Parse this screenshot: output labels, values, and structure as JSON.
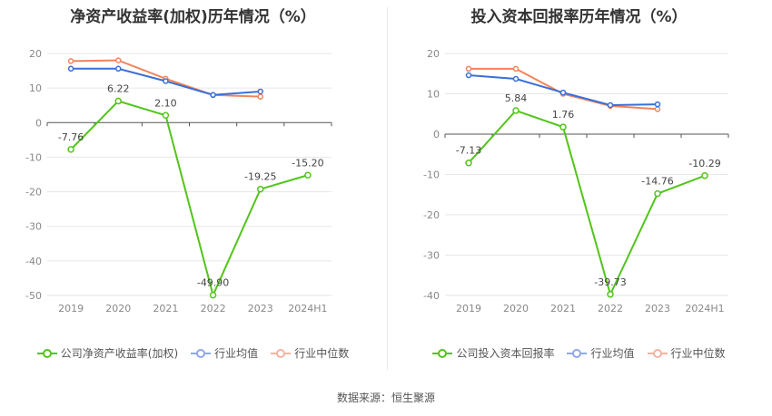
{
  "source_label": "数据来源：恒生聚源",
  "colors": {
    "company": "#52c41a",
    "avg": "#3a6fd8",
    "median": "#f0845a"
  },
  "chart_data": [
    {
      "type": "line",
      "title": "净资产收益率(加权)历年情况（%）",
      "categories": [
        "2019",
        "2020",
        "2021",
        "2022",
        "2023",
        "2024H1"
      ],
      "ylim": [
        -50,
        20
      ],
      "yticks": [
        20,
        10,
        0,
        -10,
        -20,
        -30,
        -40,
        -50
      ],
      "series": [
        {
          "name": "公司净资产收益率(加权)",
          "key": "company",
          "values": [
            -7.76,
            6.22,
            2.1,
            -49.9,
            -19.25,
            -15.2
          ],
          "labels": [
            "-7.76",
            "6.22",
            "2.10",
            "-49.90",
            "-19.25",
            "-15.20"
          ]
        },
        {
          "name": "行业均值",
          "key": "avg",
          "values": [
            15.6,
            15.6,
            12.0,
            8.0,
            9.0,
            null
          ]
        },
        {
          "name": "行业中位数",
          "key": "median",
          "values": [
            17.8,
            18.0,
            12.7,
            8.0,
            7.5,
            null
          ]
        }
      ]
    },
    {
      "type": "line",
      "title": "投入资本回报率历年情况（%）",
      "categories": [
        "2019",
        "2020",
        "2021",
        "2022",
        "2023",
        "2024H1"
      ],
      "ylim": [
        -40,
        20
      ],
      "yticks": [
        20,
        10,
        0,
        -10,
        -20,
        -30,
        -40
      ],
      "series": [
        {
          "name": "公司投入资本回报率",
          "key": "company",
          "values": [
            -7.13,
            5.84,
            1.76,
            -39.73,
            -14.76,
            -10.29
          ],
          "labels": [
            "-7.13",
            "5.84",
            "1.76",
            "-39.73",
            "-14.76",
            "-10.29"
          ]
        },
        {
          "name": "行业均值",
          "key": "avg",
          "values": [
            14.6,
            13.7,
            10.3,
            7.2,
            7.4,
            null
          ]
        },
        {
          "name": "行业中位数",
          "key": "median",
          "values": [
            16.2,
            16.2,
            10.0,
            7.0,
            6.2,
            null
          ]
        }
      ]
    }
  ]
}
